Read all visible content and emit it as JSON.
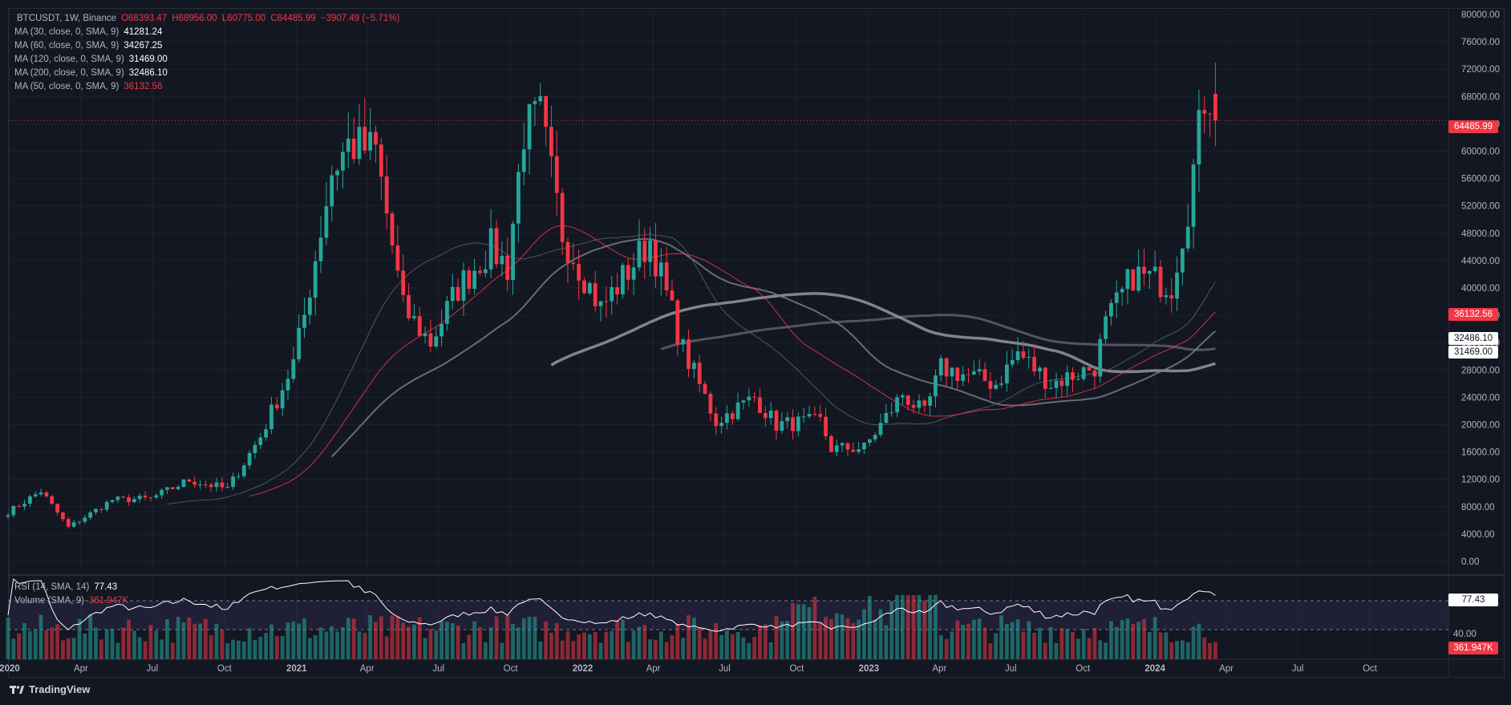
{
  "header": {
    "symbol": "BTCUSDT, 1W, Binance",
    "open": "O68393.47",
    "high": "H68956.00",
    "low": "L60775.00",
    "close": "C64485.99",
    "change": "−3907.49 (−5.71%)"
  },
  "indicators": [
    {
      "label": "MA (30, close, 0, SMA, 9)",
      "value": "41281.24",
      "color": "#ffffff"
    },
    {
      "label": "MA (60, close, 0, SMA, 9)",
      "value": "34267.25",
      "color": "#ffffff"
    },
    {
      "label": "MA (120, close, 0, SMA, 9)",
      "value": "31469.00",
      "color": "#ffffff"
    },
    {
      "label": "MA (200, close, 0, SMA, 9)",
      "value": "32486.10",
      "color": "#ffffff"
    },
    {
      "label": "MA (50, close, 0, SMA, 9)",
      "value": "36132.56",
      "color": "#f23645"
    }
  ],
  "price_axis": {
    "ticks": [
      "80000.00",
      "76000.00",
      "72000.00",
      "68000.00",
      "64000.00",
      "60000.00",
      "56000.00",
      "52000.00",
      "48000.00",
      "44000.00",
      "40000.00",
      "36000.00",
      "32000.00",
      "28000.00",
      "24000.00",
      "20000.00",
      "16000.00",
      "12000.00",
      "8000.00",
      "4000.00",
      "0.00"
    ],
    "last_price_tag": "64485.99",
    "ma50_tag": "36132.56",
    "ma200_tag": "32486.10",
    "ma120_tag": "31469.00"
  },
  "lower_pane": {
    "rsi_label": "RSI (14, SMA, 14)",
    "rsi_value": "77.43",
    "volume_label": "Volume (SMA, 9)",
    "volume_value": "361.947K",
    "rsi_tick": "40.00",
    "rsi_tag": "77.43",
    "volume_tag": "361.947K"
  },
  "time_axis": [
    "2020",
    "Apr",
    "Jul",
    "Oct",
    "2021",
    "Apr",
    "Jul",
    "Oct",
    "2022",
    "Apr",
    "Jul",
    "Oct",
    "2023",
    "Apr",
    "Jul",
    "Oct",
    "2024",
    "Apr",
    "Jul",
    "Oct"
  ],
  "footer": {
    "brand": "TradingView"
  },
  "colors": {
    "up": "#26a69a",
    "down": "#f23645",
    "background": "#131722",
    "grid": "#1e222d",
    "text": "#b2b5be",
    "ma50": "#f23645"
  },
  "chart_data": {
    "type": "candlestick",
    "timeframe": "1W",
    "ylim": [
      0,
      80000
    ],
    "x_range": [
      "2019-12-30",
      "2024-12-30"
    ],
    "anchors": [
      [
        "2019-12-30",
        7200
      ],
      [
        "2020-02-10",
        10300
      ],
      [
        "2020-03-16",
        5000
      ],
      [
        "2020-05-11",
        9000
      ],
      [
        "2020-06-29",
        9200
      ],
      [
        "2020-08-17",
        11900
      ],
      [
        "2020-10-05",
        10600
      ],
      [
        "2020-11-16",
        18300
      ],
      [
        "2020-12-28",
        29000
      ],
      [
        "2021-01-11",
        36000
      ],
      [
        "2021-02-15",
        57000
      ],
      [
        "2021-03-08",
        61000
      ],
      [
        "2021-04-12",
        60000
      ],
      [
        "2021-05-17",
        37000
      ],
      [
        "2021-06-21",
        32000
      ],
      [
        "2021-07-26",
        40000
      ],
      [
        "2021-09-06",
        46000
      ],
      [
        "2021-09-27",
        43000
      ],
      [
        "2021-10-18",
        63000
      ],
      [
        "2021-11-08",
        65000
      ],
      [
        "2021-12-06",
        48000
      ],
      [
        "2022-01-24",
        37000
      ],
      [
        "2022-03-28",
        47000
      ],
      [
        "2022-05-09",
        31000
      ],
      [
        "2022-06-20",
        20500
      ],
      [
        "2022-08-08",
        24000
      ],
      [
        "2022-09-05",
        20000
      ],
      [
        "2022-10-31",
        20500
      ],
      [
        "2022-11-14",
        16500
      ],
      [
        "2022-12-26",
        16600
      ],
      [
        "2023-02-13",
        24500
      ],
      [
        "2023-03-13",
        21500
      ],
      [
        "2023-04-03",
        28300
      ],
      [
        "2023-06-12",
        26000
      ],
      [
        "2023-07-10",
        30500
      ],
      [
        "2023-08-21",
        26000
      ],
      [
        "2023-10-16",
        28500
      ],
      [
        "2023-10-30",
        34500
      ],
      [
        "2023-12-04",
        42000
      ],
      [
        "2024-01-22",
        40500
      ],
      [
        "2024-02-12",
        52000
      ],
      [
        "2024-03-04",
        68000
      ],
      [
        "2024-03-11",
        68393
      ],
      [
        "2024-03-18",
        64486
      ]
    ],
    "last": {
      "open": 68393.47,
      "high": 68956.0,
      "low": 60775.0,
      "close": 64485.99
    },
    "moving_averages": [
      {
        "name": "MA (30, close, 0, SMA, 9)",
        "value": 41281.24
      },
      {
        "name": "MA (60, close, 0, SMA, 9)",
        "value": 34267.25
      },
      {
        "name": "MA (120, close, 0, SMA, 9)",
        "value": 31469.0
      },
      {
        "name": "MA (200, close, 0, SMA, 9)",
        "value": 32486.1
      },
      {
        "name": "MA (50, close, 0, SMA, 9)",
        "value": 36132.56
      }
    ],
    "rsi": {
      "period": 14,
      "last": 77.43,
      "ylim": [
        0,
        100
      ],
      "bands": [
        30,
        70
      ]
    },
    "volume": {
      "last_sma": "361.947K"
    }
  }
}
